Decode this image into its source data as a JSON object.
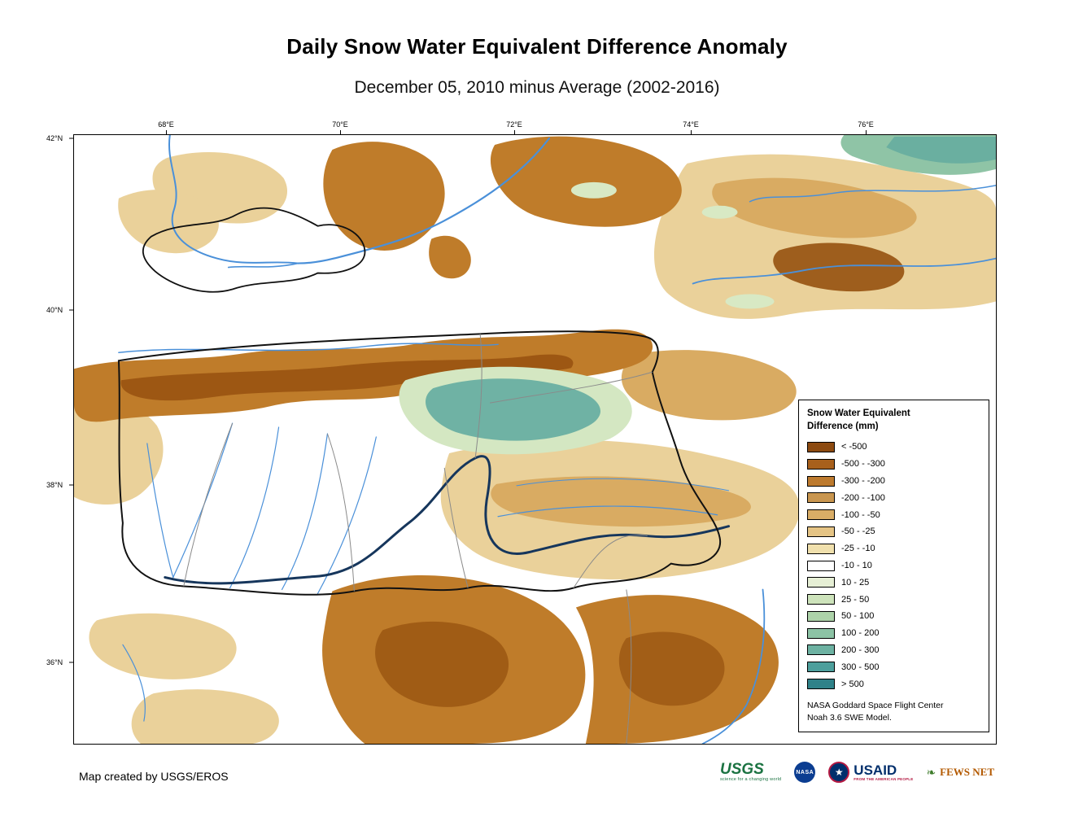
{
  "title": "Daily Snow Water Equivalent Difference Anomaly",
  "subtitle": "December 05, 2010 minus Average (2002-2016)",
  "map": {
    "lon_ticks": [
      "68°E",
      "70°E",
      "72°E",
      "74°E",
      "76°E"
    ],
    "lat_ticks": [
      "42°N",
      "40°N",
      "38°N",
      "36°N"
    ]
  },
  "legend": {
    "title_line1": "Snow Water Equivalent",
    "title_line2": "Difference (mm)",
    "entries": [
      {
        "label": "< -500",
        "color": "#8c4a10"
      },
      {
        "label": "-500 - -300",
        "color": "#a8601c"
      },
      {
        "label": "-300 - -200",
        "color": "#bd7a2e"
      },
      {
        "label": "-200 - -100",
        "color": "#c9964f"
      },
      {
        "label": "-100 - -50",
        "color": "#d9ad66"
      },
      {
        "label": "-50 - -25",
        "color": "#e5c485"
      },
      {
        "label": "-25 - -10",
        "color": "#f0e0ad"
      },
      {
        "label": "-10 - 10",
        "color": "#ffffff"
      },
      {
        "label": "10 - 25",
        "color": "#e6efd5"
      },
      {
        "label": "25 - 50",
        "color": "#cde3bb"
      },
      {
        "label": "50 - 100",
        "color": "#add3a9"
      },
      {
        "label": "100 - 200",
        "color": "#8cc3a5"
      },
      {
        "label": "200 - 300",
        "color": "#6db2a2"
      },
      {
        "label": "300 - 500",
        "color": "#4d9f9c"
      },
      {
        "label": "> 500",
        "color": "#2f8289"
      }
    ],
    "source_line1": "NASA Goddard Space Flight Center",
    "source_line2": "Noah 3.6 SWE Model."
  },
  "footer": {
    "credit": "Map created by USGS/EROS",
    "logos": {
      "usgs": {
        "name": "USGS",
        "tagline": "science for a changing world"
      },
      "nasa": {
        "name": "NASA"
      },
      "usaid": {
        "name": "USAID",
        "tagline": "FROM THE AMERICAN PEOPLE"
      },
      "fewsnet": {
        "name": "FEWS NET"
      }
    }
  }
}
